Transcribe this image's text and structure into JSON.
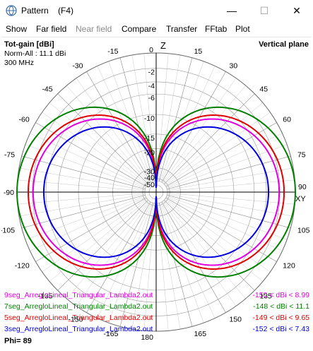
{
  "window": {
    "title": "Pattern    (F4)",
    "min_glyph": "—",
    "max_glyph": "☐",
    "close_glyph": "✕"
  },
  "menu": [
    {
      "label": "Show",
      "enabled": true
    },
    {
      "label": "Far field",
      "enabled": true
    },
    {
      "label": "Near field",
      "enabled": false
    },
    {
      "label": "Compare",
      "enabled": true
    },
    {
      "label": "Transfer",
      "enabled": true
    },
    {
      "label": "FFtab",
      "enabled": true
    },
    {
      "label": "Plot",
      "enabled": true
    }
  ],
  "plot": {
    "gain_title": "Tot-gain [dBi]",
    "norm": "Norm-All : 11.1 dBi",
    "freq": "300 MHz",
    "plane": "Vertical plane",
    "phi": "Phi= 89",
    "z_label": "Z",
    "xy_label": "XY",
    "ring_labels": [
      "-2",
      "-4",
      "-6",
      "-10",
      "-15",
      "-20",
      "-30",
      "-40",
      "-50"
    ],
    "angle_labels": [
      "0",
      "15",
      "30",
      "45",
      "60",
      "75",
      "90",
      "105",
      "120",
      "135",
      "150",
      "165",
      "180",
      "-165",
      "-150",
      "-135",
      "-120",
      "-105",
      "-90",
      "-75",
      "-60",
      "-45",
      "-30",
      "-15"
    ]
  },
  "chart_data": {
    "type": "polar",
    "angle_unit": "degrees",
    "radial_unit": "dB relative to 11.1 dBi",
    "series": [
      {
        "name": "9seg_ArregloLineal_Triangular_Lambda2.out",
        "min_text": "-150 < dBi < 8.99",
        "color": "#e000e0",
        "max_rel_db": -2.11
      },
      {
        "name": "7seg_ArregloLineal_Triangular_Lambda2.out",
        "min_text": "-148 < dBi < 11.1",
        "color": "#008000",
        "max_rel_db": 0.0
      },
      {
        "name": "5seg_ArregloLineal_Triangular_Lambda2.out",
        "min_text": "-149 < dBi < 9.65",
        "color": "#e00000",
        "max_rel_db": -1.45
      },
      {
        "name": "3seg_ArregloLineal_Triangular_Lambda2.out",
        "min_text": "-152 < dBi < 7.43",
        "color": "#0000e0",
        "max_rel_db": -3.67
      }
    ]
  }
}
